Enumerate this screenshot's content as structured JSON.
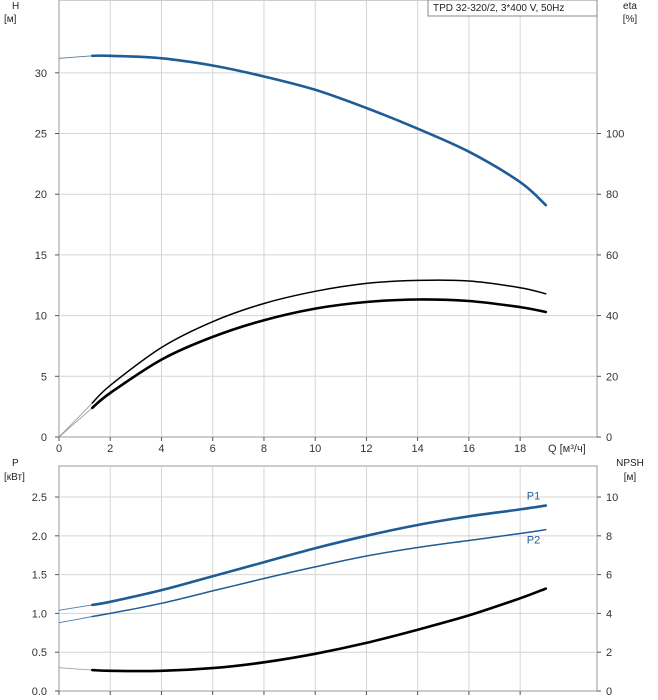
{
  "chart_data": [
    {
      "type": "line",
      "panel": "top",
      "pump_label": "TPD 32-320/2, 3*400 V, 50Hz",
      "xlabel": "Q [м³/ч]",
      "left_axis": {
        "title": "H",
        "unit": "[м]",
        "ylim": [
          0,
          36
        ],
        "ticks": [
          0,
          5,
          10,
          15,
          20,
          25,
          30
        ]
      },
      "right_axis": {
        "title": "eta",
        "unit": "[%]",
        "ylim": [
          0,
          144
        ],
        "ticks": [
          0,
          20,
          40,
          60,
          80,
          100
        ]
      },
      "xlim": [
        0,
        21
      ],
      "xticks": [
        0,
        2,
        4,
        6,
        8,
        10,
        12,
        14,
        16,
        18
      ],
      "grid": true,
      "series": [
        {
          "axis": "left",
          "color": "#1f5c96",
          "style": "bold",
          "extension": [
            [
              0,
              31.2
            ],
            [
              1.3,
              31.4
            ]
          ],
          "points": [
            [
              1.3,
              31.4
            ],
            [
              2,
              31.4
            ],
            [
              4,
              31.2
            ],
            [
              6,
              30.6
            ],
            [
              8,
              29.7
            ],
            [
              10,
              28.6
            ],
            [
              12,
              27.1
            ],
            [
              14,
              25.4
            ],
            [
              16,
              23.5
            ],
            [
              18,
              21.0
            ],
            [
              19,
              19.1
            ]
          ]
        },
        {
          "axis": "right",
          "color": "#000000",
          "style": "medium",
          "extension": [
            [
              0,
              0
            ],
            [
              1.3,
              11.2
            ]
          ],
          "points": [
            [
              1.3,
              11.2
            ],
            [
              2,
              17
            ],
            [
              4,
              29.5
            ],
            [
              6,
              38
            ],
            [
              8,
              44
            ],
            [
              10,
              48
            ],
            [
              12,
              50.6
            ],
            [
              14,
              51.6
            ],
            [
              16,
              51.4
            ],
            [
              18,
              49.2
            ],
            [
              19,
              47.2
            ]
          ]
        },
        {
          "axis": "right",
          "color": "#000000",
          "style": "bold",
          "extension": [
            [
              0,
              0
            ],
            [
              1.3,
              9.6
            ]
          ],
          "points": [
            [
              1.3,
              9.6
            ],
            [
              2,
              14.5
            ],
            [
              4,
              25.5
            ],
            [
              6,
              33
            ],
            [
              8,
              38.5
            ],
            [
              10,
              42.3
            ],
            [
              12,
              44.5
            ],
            [
              14,
              45.3
            ],
            [
              16,
              44.8
            ],
            [
              18,
              42.8
            ],
            [
              19,
              41.2
            ]
          ]
        }
      ]
    },
    {
      "type": "line",
      "panel": "bottom",
      "left_axis": {
        "title": "P",
        "unit": "[кВт]",
        "ylim": [
          0,
          2.9
        ],
        "ticks": [
          "0.0",
          "0.5",
          "1.0",
          "1.5",
          "2.0",
          "2.5"
        ]
      },
      "right_axis": {
        "title": "NPSH",
        "unit": "[м]",
        "ylim": [
          0,
          11.6
        ],
        "ticks": [
          0,
          2,
          4,
          6,
          8,
          10
        ]
      },
      "xlim": [
        0,
        21
      ],
      "xticks": [
        0,
        2,
        4,
        6,
        8,
        10,
        12,
        14,
        16,
        18
      ],
      "grid": true,
      "series": [
        {
          "name": "P1",
          "axis": "left",
          "color": "#1f5c96",
          "style": "bold",
          "extension": [
            [
              0,
              1.04
            ],
            [
              1.3,
              1.11
            ]
          ],
          "points": [
            [
              1.3,
              1.11
            ],
            [
              2,
              1.15
            ],
            [
              4,
              1.3
            ],
            [
              6,
              1.48
            ],
            [
              8,
              1.66
            ],
            [
              10,
              1.84
            ],
            [
              12,
              2.0
            ],
            [
              14,
              2.14
            ],
            [
              16,
              2.25
            ],
            [
              18,
              2.34
            ],
            [
              19,
              2.39
            ]
          ]
        },
        {
          "name": "P2",
          "axis": "left",
          "color": "#1f5c96",
          "style": "medium",
          "extension": [
            [
              0,
              0.88
            ],
            [
              1.3,
              0.96
            ]
          ],
          "points": [
            [
              1.3,
              0.96
            ],
            [
              2,
              1.0
            ],
            [
              4,
              1.13
            ],
            [
              6,
              1.29
            ],
            [
              8,
              1.45
            ],
            [
              10,
              1.6
            ],
            [
              12,
              1.74
            ],
            [
              14,
              1.85
            ],
            [
              16,
              1.94
            ],
            [
              18,
              2.03
            ],
            [
              19,
              2.08
            ]
          ]
        },
        {
          "axis": "right",
          "color": "#000000",
          "style": "bold",
          "extension": [
            [
              0,
              1.2
            ],
            [
              1.3,
              1.08
            ]
          ],
          "points": [
            [
              1.3,
              1.08
            ],
            [
              2,
              1.04
            ],
            [
              4,
              1.04
            ],
            [
              6,
              1.18
            ],
            [
              8,
              1.48
            ],
            [
              10,
              1.92
            ],
            [
              12,
              2.48
            ],
            [
              14,
              3.16
            ],
            [
              16,
              3.9
            ],
            [
              18,
              4.78
            ],
            [
              19,
              5.28
            ]
          ]
        }
      ]
    }
  ]
}
